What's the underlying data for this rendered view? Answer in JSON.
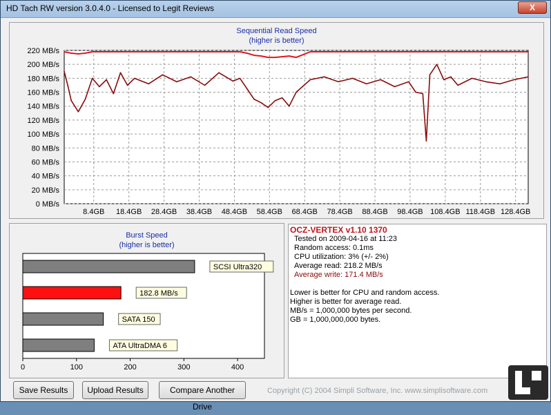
{
  "window": {
    "title": "HD Tach RW version 3.0.4.0 - Licensed to Legit Reviews",
    "close_label": "X"
  },
  "seq_chart": {
    "title": "Sequential Read Speed",
    "subtitle": "(higher is better)"
  },
  "burst_chart": {
    "title": "Burst Speed",
    "subtitle": "(higher is better)"
  },
  "info": {
    "drive_name": "OCZ-VERTEX v1.10 1370",
    "tested_on": "Tested on 2009-04-16 at 11:23",
    "random_access": "Random access: 0.1ms",
    "cpu_util": "CPU utilization: 3% (+/- 2%)",
    "avg_read": "Average read: 218.2 MB/s",
    "avg_write": "Average write: 171.4 MB/s",
    "note1": "Lower is better for CPU and random access.",
    "note2": "Higher is better for average read.",
    "note3": "MB/s = 1,000,000 bytes per second.",
    "note4": "GB = 1,000,000,000 bytes."
  },
  "buttons": {
    "save": "Save Results",
    "upload": "Upload Results",
    "compare": "Compare Another Drive"
  },
  "copyright": "Copyright (C) 2004 Simpli Software, Inc. www.simplisoftware.com",
  "colors": {
    "read_series": "#e0141e",
    "write_series": "#8b0a0a",
    "highlight_bar": "#ff1010",
    "ref_bar": "#7f7f7f",
    "title_blue": "#1a2ca8"
  },
  "chart_data": [
    {
      "type": "line",
      "title": "Sequential Read Speed",
      "subtitle": "(higher is better)",
      "y_unit": "MB/s",
      "ylim": [
        0,
        220
      ],
      "y_ticks": [
        0,
        20,
        40,
        60,
        80,
        100,
        120,
        140,
        160,
        180,
        200,
        220
      ],
      "y_tick_labels": [
        "0 MB/s",
        "20 MB/s",
        "40 MB/s",
        "60 MB/s",
        "80 MB/s",
        "100 MB/s",
        "120 MB/s",
        "140 MB/s",
        "160 MB/s",
        "180 MB/s",
        "200 MB/s",
        "220 MB/s"
      ],
      "xlim": [
        0,
        132
      ],
      "x_ticks": [
        8.4,
        18.4,
        28.4,
        38.4,
        48.4,
        58.4,
        68.4,
        78.4,
        88.4,
        98.4,
        108.4,
        118.4,
        128.4
      ],
      "x_tick_labels": [
        "8.4GB",
        "18.4GB",
        "28.4GB",
        "38.4GB",
        "48.4GB",
        "58.4GB",
        "68.4GB",
        "78.4GB",
        "88.4GB",
        "98.4GB",
        "108.4GB",
        "118.4GB",
        "128.4GB"
      ],
      "grid": true,
      "series": [
        {
          "x": [
            0,
            2,
            4,
            6,
            8,
            10,
            20,
            30,
            40,
            50,
            52,
            54,
            56,
            58,
            60,
            62,
            64,
            66,
            68,
            70,
            80,
            90,
            100,
            110,
            120,
            132
          ],
          "values": [
            218,
            216,
            215,
            216,
            218,
            218,
            218,
            218,
            218,
            218,
            216,
            213,
            212,
            210,
            210,
            211,
            212,
            210,
            214,
            218,
            218,
            218,
            218,
            218,
            218,
            218
          ]
        },
        {
          "x": [
            0,
            1,
            2,
            3,
            4,
            6,
            8,
            10,
            12,
            14,
            16,
            18,
            20,
            24,
            28,
            32,
            36,
            40,
            44,
            48,
            50,
            52,
            54,
            56,
            58,
            60,
            62,
            64,
            66,
            70,
            74,
            78,
            82,
            86,
            90,
            94,
            98,
            100,
            102,
            103,
            104,
            106,
            108,
            110,
            112,
            116,
            120,
            124,
            128,
            132
          ],
          "values": [
            190,
            170,
            148,
            140,
            132,
            150,
            180,
            168,
            178,
            158,
            188,
            170,
            180,
            172,
            185,
            175,
            182,
            170,
            188,
            176,
            180,
            165,
            150,
            145,
            138,
            148,
            152,
            140,
            160,
            178,
            182,
            175,
            180,
            172,
            178,
            168,
            175,
            160,
            158,
            90,
            185,
            200,
            178,
            182,
            170,
            180,
            175,
            172,
            178,
            182
          ]
        }
      ]
    },
    {
      "type": "bar",
      "title": "Burst Speed",
      "subtitle": "(higher is better)",
      "categories": [
        "SCSI Ultra320",
        "182.8 MB/s",
        "SATA 150",
        "ATA UltraDMA 6"
      ],
      "values": [
        320,
        182.8,
        150,
        133
      ],
      "xlim": [
        0,
        450
      ],
      "x_ticks": [
        0,
        100,
        200,
        300,
        400
      ],
      "highlight_index": 1
    }
  ]
}
